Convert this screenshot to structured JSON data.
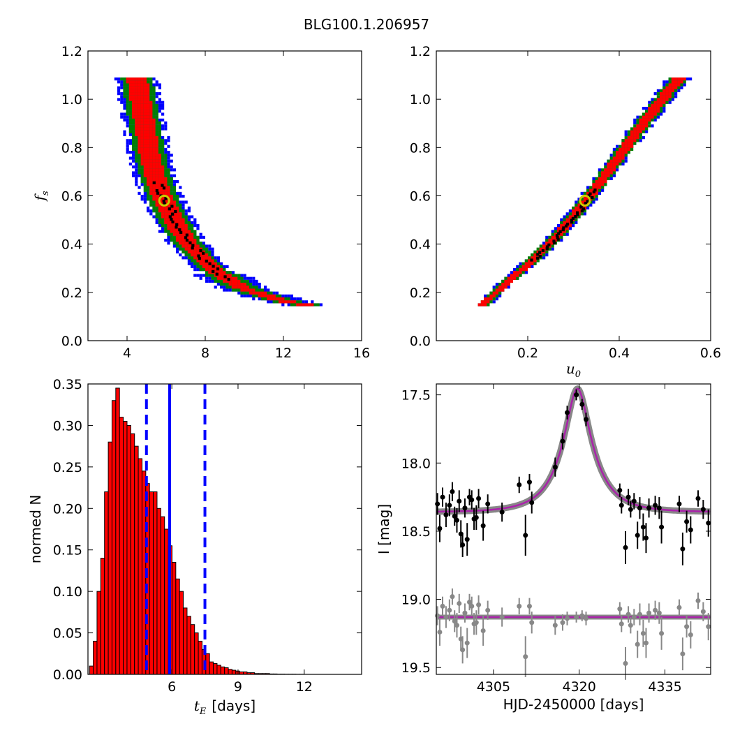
{
  "figure": {
    "title": "BLG100.1.206957"
  },
  "chart_data": [
    {
      "type": "scatter",
      "name_key": "fs_vs_tE",
      "xlabel": "",
      "ylabel": "f",
      "ylabel_sub": "s",
      "xlim": [
        2,
        16
      ],
      "ylim": [
        0.0,
        1.2
      ],
      "xticks": [
        "4",
        "8",
        "12",
        "16"
      ],
      "yticks": [
        "0.0",
        "0.2",
        "0.4",
        "0.6",
        "0.8",
        "1.0",
        "1.2"
      ],
      "confidence_colors": {
        "outer": "#0000ff",
        "middle": "#008000",
        "inner": "#ff0000",
        "best": "#000000"
      },
      "ridge": [
        [
          4.5,
          1.09
        ],
        [
          4.7,
          1.0
        ],
        [
          4.9,
          0.9
        ],
        [
          5.1,
          0.8
        ],
        [
          5.4,
          0.7
        ],
        [
          5.8,
          0.6
        ],
        [
          6.4,
          0.5
        ],
        [
          7.2,
          0.4
        ],
        [
          8.4,
          0.3
        ],
        [
          10.0,
          0.22
        ],
        [
          12.0,
          0.17
        ],
        [
          13.5,
          0.15
        ]
      ],
      "best_fit_marker": {
        "x": 5.9,
        "y": 0.58,
        "color": "#cccc00"
      }
    },
    {
      "type": "scatter",
      "name_key": "fs_vs_u0",
      "xlabel": "u",
      "xlabel_sub": "0",
      "ylabel": "",
      "xlim": [
        0.0,
        0.6
      ],
      "ylim": [
        0.0,
        1.2
      ],
      "xticks": [
        "0.2",
        "0.4",
        "0.6"
      ],
      "yticks": [
        "0.0",
        "0.2",
        "0.4",
        "0.6",
        "0.8",
        "1.0",
        "1.2"
      ],
      "confidence_colors": {
        "outer": "#0000ff",
        "middle": "#008000",
        "inner": "#ff0000",
        "best": "#000000"
      },
      "ridge": [
        [
          0.1,
          0.15
        ],
        [
          0.15,
          0.24
        ],
        [
          0.2,
          0.32
        ],
        [
          0.25,
          0.41
        ],
        [
          0.3,
          0.52
        ],
        [
          0.35,
          0.64
        ],
        [
          0.4,
          0.77
        ],
        [
          0.45,
          0.9
        ],
        [
          0.5,
          1.02
        ],
        [
          0.53,
          1.09
        ]
      ],
      "best_fit_marker": {
        "x": 0.325,
        "y": 0.58,
        "color": "#cccc00"
      }
    },
    {
      "type": "bar",
      "name_key": "tE_histogram",
      "xlabel_math": "t",
      "xlabel_sub": "E",
      "xlabel_units": "[days]",
      "ylabel": "normed N",
      "xlim": [
        2.2,
        14.6
      ],
      "ylim": [
        0.0,
        0.35
      ],
      "xticks": [
        "6",
        "9",
        "12"
      ],
      "yticks": [
        "0.00",
        "0.05",
        "0.10",
        "0.15",
        "0.20",
        "0.25",
        "0.30",
        "0.35"
      ],
      "bar_color": "#ff0000",
      "bin_width": 0.17,
      "bin_start": 2.27,
      "values": [
        0.01,
        0.04,
        0.1,
        0.14,
        0.22,
        0.28,
        0.33,
        0.345,
        0.31,
        0.305,
        0.3,
        0.29,
        0.275,
        0.26,
        0.245,
        0.23,
        0.22,
        0.22,
        0.2,
        0.19,
        0.175,
        0.155,
        0.135,
        0.115,
        0.1,
        0.08,
        0.07,
        0.06,
        0.05,
        0.04,
        0.03,
        0.025,
        0.015,
        0.013,
        0.011,
        0.009,
        0.008,
        0.006,
        0.005,
        0.004,
        0.003,
        0.003,
        0.002,
        0.002,
        0.001,
        0.001,
        0.001,
        0.001,
        0.0005,
        0.0005,
        0.0003,
        0.0003,
        0.0002,
        0.0002,
        0.0002,
        0.0001,
        0.0001
      ],
      "median": 5.9,
      "lower": 4.85,
      "upper": 7.5,
      "line_color": "#0000ff"
    },
    {
      "type": "line",
      "name_key": "light_curve",
      "xlabel": "HJD-2450000 [days]",
      "ylabel": "I [mag]",
      "xlim": [
        4295,
        4343
      ],
      "ylim": [
        19.55,
        17.42
      ],
      "xticks": [
        "4305",
        "4320",
        "4335"
      ],
      "yticks": [
        "17.5",
        "18.0",
        "18.5",
        "19.0",
        "19.5"
      ],
      "model": {
        "t0": 4319.7,
        "u0": 0.32,
        "tE": 5.9,
        "fs": 0.58,
        "baseline": 18.36,
        "color": "#aa22aa",
        "band_color": "#888888"
      },
      "data_points": [
        [
          4295.2,
          18.3,
          0.08
        ],
        [
          4295.6,
          18.48,
          0.1
        ],
        [
          4296.1,
          18.25,
          0.07
        ],
        [
          4296.7,
          18.38,
          0.09
        ],
        [
          4297.3,
          18.31,
          0.08
        ],
        [
          4297.8,
          18.21,
          0.07
        ],
        [
          4298.2,
          18.39,
          0.07
        ],
        [
          4298.6,
          18.42,
          0.09
        ],
        [
          4299.0,
          18.28,
          0.08
        ],
        [
          4299.3,
          18.52,
          0.1
        ],
        [
          4299.6,
          18.6,
          0.09
        ],
        [
          4300.0,
          18.33,
          0.07
        ],
        [
          4300.4,
          18.56,
          0.12
        ],
        [
          4300.8,
          18.25,
          0.06
        ],
        [
          4301.2,
          18.27,
          0.07
        ],
        [
          4301.6,
          18.41,
          0.08
        ],
        [
          4302.0,
          18.4,
          0.09
        ],
        [
          4302.4,
          18.26,
          0.07
        ],
        [
          4303.2,
          18.46,
          0.11
        ],
        [
          4304.0,
          18.3,
          0.07
        ],
        [
          4306.5,
          18.36,
          0.07
        ],
        [
          4309.5,
          18.16,
          0.06
        ],
        [
          4310.6,
          18.53,
          0.15
        ],
        [
          4311.3,
          18.14,
          0.06
        ],
        [
          4311.7,
          18.29,
          0.08
        ],
        [
          4315.8,
          18.03,
          0.07
        ],
        [
          4317.1,
          17.84,
          0.06
        ],
        [
          4317.9,
          17.63,
          0.05
        ],
        [
          4319.5,
          17.5,
          0.04
        ],
        [
          4320.5,
          17.57,
          0.04
        ],
        [
          4321.2,
          17.68,
          0.05
        ],
        [
          4327.1,
          18.2,
          0.05
        ],
        [
          4327.4,
          18.31,
          0.06
        ],
        [
          4328.1,
          18.62,
          0.12
        ],
        [
          4328.6,
          18.25,
          0.06
        ],
        [
          4329.0,
          18.34,
          0.06
        ],
        [
          4329.6,
          18.28,
          0.06
        ],
        [
          4330.2,
          18.53,
          0.1
        ],
        [
          4330.6,
          18.33,
          0.08
        ],
        [
          4331.2,
          18.47,
          0.1
        ],
        [
          4331.7,
          18.55,
          0.11
        ],
        [
          4332.2,
          18.33,
          0.07
        ],
        [
          4333.3,
          18.31,
          0.07
        ],
        [
          4334.0,
          18.33,
          0.08
        ],
        [
          4334.4,
          18.47,
          0.12
        ],
        [
          4337.5,
          18.3,
          0.06
        ],
        [
          4338.1,
          18.63,
          0.12
        ],
        [
          4338.8,
          18.43,
          0.08
        ],
        [
          4339.5,
          18.49,
          0.1
        ],
        [
          4340.8,
          18.26,
          0.06
        ],
        [
          4341.7,
          18.34,
          0.07
        ],
        [
          4342.6,
          18.44,
          0.1
        ]
      ],
      "residual_points": [
        [
          4295.2,
          19.12,
          0.07
        ],
        [
          4295.6,
          19.24,
          0.1
        ],
        [
          4296.1,
          19.05,
          0.07
        ],
        [
          4296.7,
          19.13,
          0.08
        ],
        [
          4297.3,
          19.08,
          0.08
        ],
        [
          4297.8,
          18.98,
          0.06
        ],
        [
          4298.2,
          19.16,
          0.08
        ],
        [
          4298.6,
          19.19,
          0.09
        ],
        [
          4299.0,
          19.03,
          0.07
        ],
        [
          4299.3,
          19.29,
          0.09
        ],
        [
          4299.6,
          19.37,
          0.1
        ],
        [
          4300.0,
          19.1,
          0.07
        ],
        [
          4300.4,
          19.32,
          0.11
        ],
        [
          4300.8,
          19.02,
          0.06
        ],
        [
          4301.2,
          19.05,
          0.07
        ],
        [
          4301.6,
          19.18,
          0.08
        ],
        [
          4302.0,
          19.17,
          0.09
        ],
        [
          4302.4,
          19.04,
          0.07
        ],
        [
          4303.2,
          19.23,
          0.11
        ],
        [
          4304.0,
          19.08,
          0.07
        ],
        [
          4306.5,
          19.13,
          0.07
        ],
        [
          4309.5,
          19.05,
          0.06
        ],
        [
          4310.6,
          19.42,
          0.15
        ],
        [
          4311.3,
          19.05,
          0.06
        ],
        [
          4311.7,
          19.17,
          0.08
        ],
        [
          4315.8,
          19.19,
          0.07
        ],
        [
          4317.1,
          19.17,
          0.06
        ],
        [
          4317.9,
          19.14,
          0.05
        ],
        [
          4319.5,
          19.13,
          0.04
        ],
        [
          4320.5,
          19.12,
          0.04
        ],
        [
          4321.2,
          19.14,
          0.05
        ],
        [
          4327.1,
          19.07,
          0.05
        ],
        [
          4327.4,
          19.18,
          0.06
        ],
        [
          4328.1,
          19.47,
          0.12
        ],
        [
          4328.6,
          19.11,
          0.06
        ],
        [
          4329.0,
          19.19,
          0.06
        ],
        [
          4329.6,
          19.13,
          0.06
        ],
        [
          4330.2,
          19.33,
          0.1
        ],
        [
          4330.6,
          19.11,
          0.08
        ],
        [
          4331.2,
          19.25,
          0.1
        ],
        [
          4331.7,
          19.32,
          0.11
        ],
        [
          4332.2,
          19.1,
          0.07
        ],
        [
          4333.3,
          19.08,
          0.07
        ],
        [
          4334.0,
          19.1,
          0.08
        ],
        [
          4334.4,
          19.25,
          0.12
        ],
        [
          4337.5,
          19.06,
          0.06
        ],
        [
          4338.1,
          19.4,
          0.12
        ],
        [
          4338.8,
          19.2,
          0.08
        ],
        [
          4339.5,
          19.26,
          0.1
        ],
        [
          4340.8,
          19.01,
          0.06
        ],
        [
          4341.7,
          19.09,
          0.07
        ],
        [
          4342.6,
          19.2,
          0.1
        ]
      ],
      "residual_offset": 19.13,
      "data_color": "#000000",
      "residual_color": "#888888"
    }
  ]
}
